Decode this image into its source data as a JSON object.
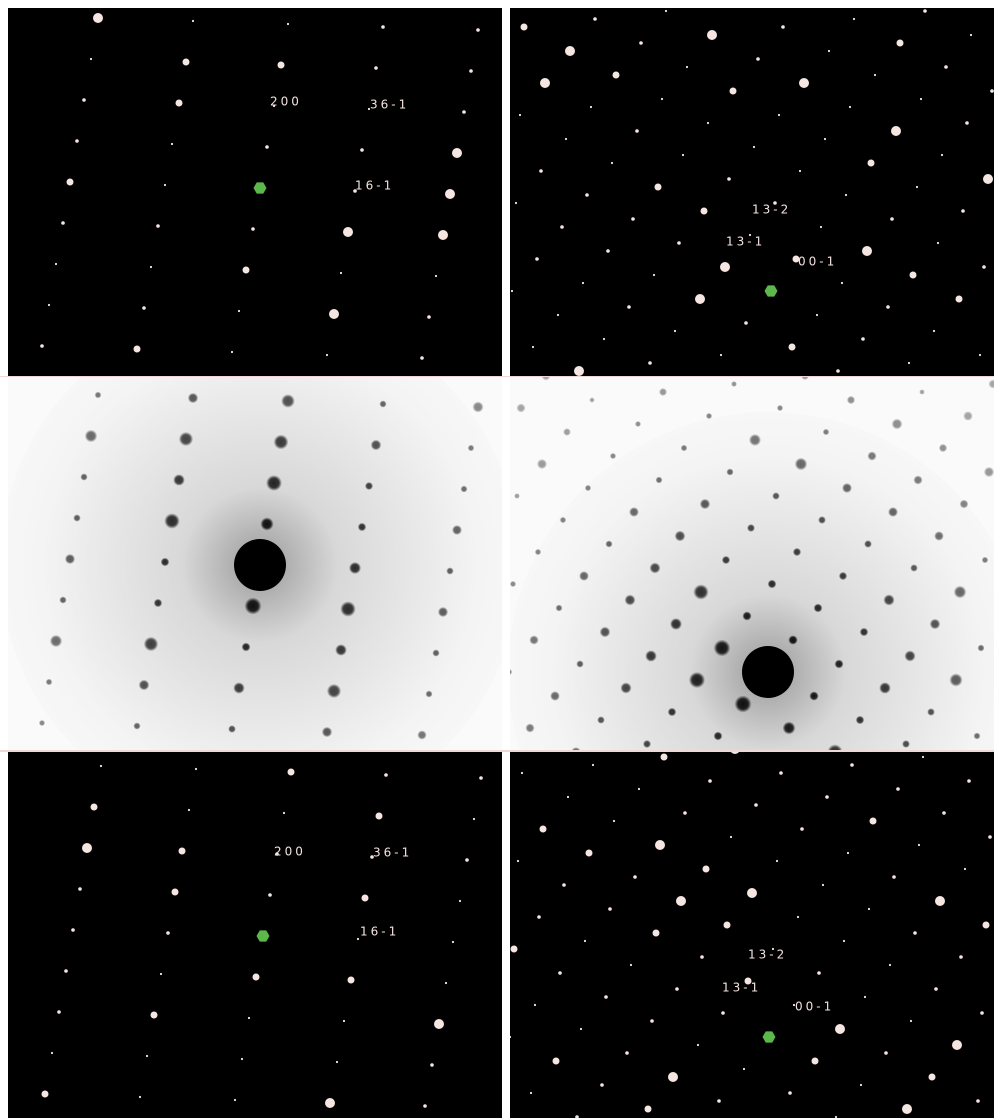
{
  "panels": [
    {
      "labels": [
        "200",
        "36-1",
        "16-1"
      ]
    },
    {
      "labels": [
        "13-2",
        "13-1",
        "00-1"
      ]
    },
    {
      "labels": [
        "200",
        "36-1",
        "16-1"
      ]
    },
    {
      "labels": [
        "13-2",
        "13-1",
        "00-1"
      ]
    }
  ]
}
